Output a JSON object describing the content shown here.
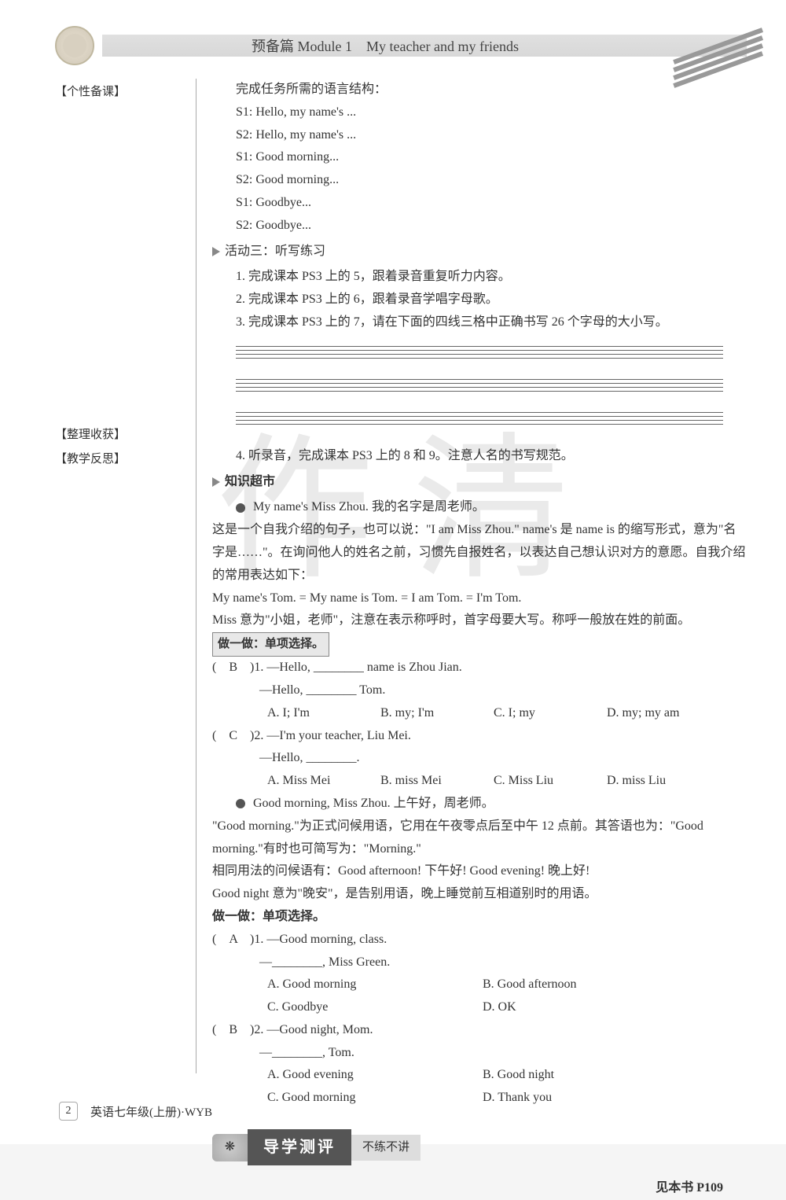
{
  "header": {
    "title": "预备篇 Module 1　My teacher and my friends"
  },
  "sidebar": {
    "label1": "【个性备课】",
    "label2": "【整理收获】",
    "label3": "【教学反思】"
  },
  "intro": {
    "line1": "完成任务所需的语言结构：",
    "s1a": "S1: Hello, my name's ...",
    "s2a": "S2: Hello, my name's ...",
    "s1b": "S1: Good morning...",
    "s2b": "S2: Good morning...",
    "s1c": "S1: Goodbye...",
    "s2c": "S2: Goodbye..."
  },
  "activity3": {
    "title": "活动三：听写练习",
    "item1": "1. 完成课本 PS3 上的 5，跟着录音重复听力内容。",
    "item2": "2. 完成课本 PS3 上的 6，跟着录音学唱字母歌。",
    "item3": "3. 完成课本 PS3 上的 7，请在下面的四线三格中正确书写 26 个字母的大小写。",
    "item4": "4. 听录音，完成课本 PS3 上的 8 和 9。注意人名的书写规范。"
  },
  "knowledge": {
    "title": "知识超市",
    "point1": {
      "header": "My name's Miss Zhou. 我的名字是周老师。",
      "para1": "这是一个自我介绍的句子，也可以说：\"I am Miss Zhou.\" name's 是 name is 的缩写形式，意为\"名字是……\"。在询问他人的姓名之前，习惯先自报姓名，以表达自己想认识对方的意愿。自我介绍的常用表达如下：",
      "para2": "My name's Tom. = My name is Tom. = I am Tom. = I'm Tom.",
      "para3": "Miss 意为\"小姐，老师\"，注意在表示称呼时，首字母要大写。称呼一般放在姓的前面。",
      "practice_label": "做一做：单项选择。",
      "q1": {
        "answer": "B",
        "stem": ")1. —Hello, ________ name is Zhou Jian.",
        "line2": "—Hello, ________ Tom.",
        "opts": {
          "A": "A. I; I'm",
          "B": "B. my; I'm",
          "C": "C. I; my",
          "D": "D. my; my am"
        }
      },
      "q2": {
        "answer": "C",
        "stem": ")2. —I'm your teacher, Liu Mei.",
        "line2": "—Hello, ________.",
        "opts": {
          "A": "A. Miss Mei",
          "B": "B. miss Mei",
          "C": "C. Miss Liu",
          "D": "D. miss Liu"
        }
      }
    },
    "point2": {
      "header": "Good morning, Miss Zhou. 上午好，周老师。",
      "para1": "\"Good morning.\"为正式问候用语，它用在午夜零点后至中午 12 点前。其答语也为：\"Good morning.\"有时也可简写为：\"Morning.\"",
      "para2": "相同用法的问候语有：Good afternoon! 下午好! Good evening! 晚上好!",
      "para3": "Good night 意为\"晚安\"，是告别用语，晚上睡觉前互相道别时的用语。",
      "practice_label": "做一做：单项选择。",
      "q1": {
        "answer": "A",
        "stem": ")1. —Good morning, class.",
        "line2": "—________, Miss Green.",
        "opts": {
          "A": "A. Good morning",
          "B": "B. Good afternoon",
          "C": "C. Goodbye",
          "D": "D. OK"
        }
      },
      "q2": {
        "answer": "B",
        "stem": ")2. —Good night, Mom.",
        "line2": "—________, Tom.",
        "opts": {
          "A": "A. Good evening",
          "B": "B. Good night",
          "C": "C. Good morning",
          "D": "D. Thank you"
        }
      }
    }
  },
  "assessment": {
    "title": "导学测评",
    "sub": "不练不讲",
    "ref": "见本书 P109"
  },
  "footer": {
    "page": "2",
    "book": "英语七年级(上册)·WYB"
  }
}
